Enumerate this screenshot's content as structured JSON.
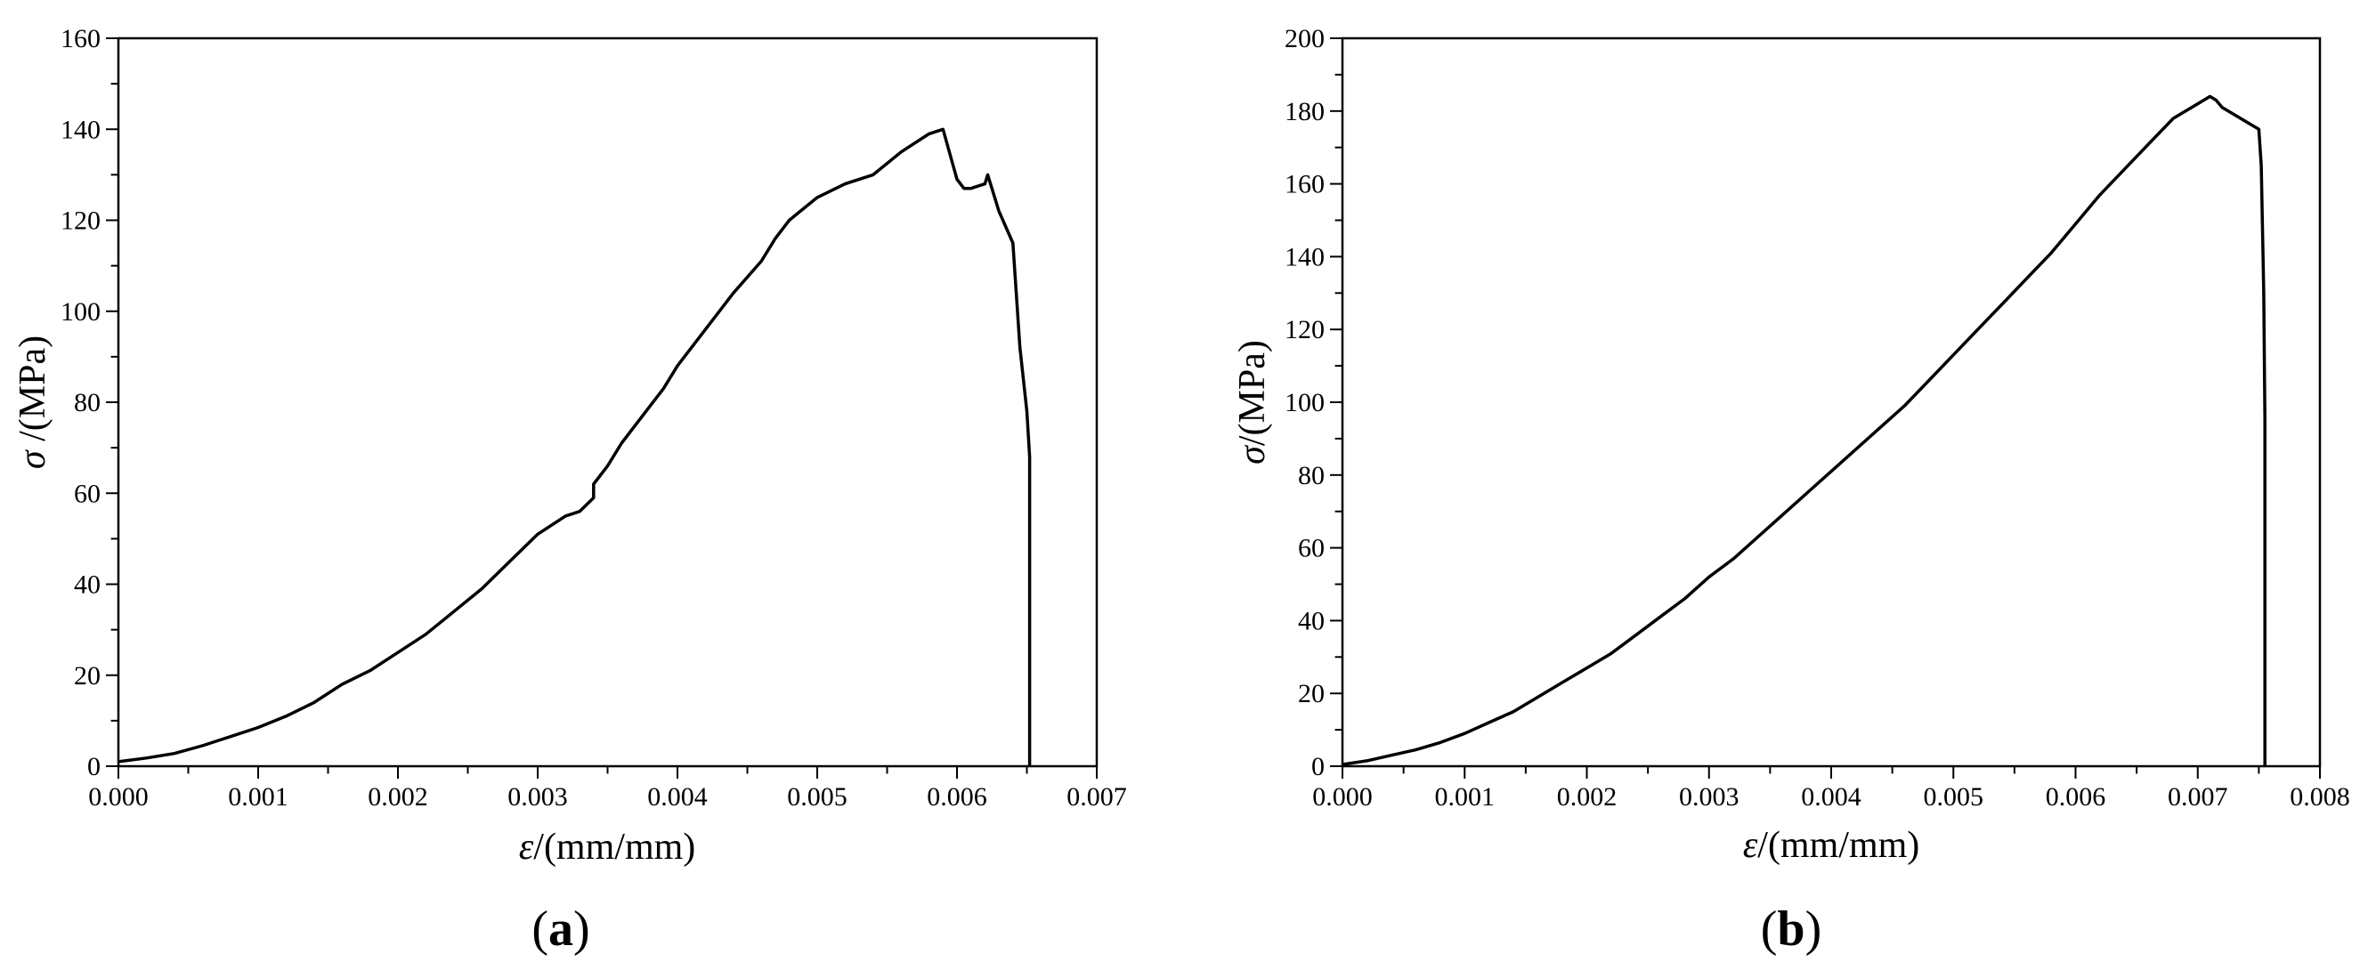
{
  "chart_data": [
    {
      "type": "line",
      "panel": "a",
      "panel_label": "a",
      "xlabel_symbol": "ε",
      "xlabel_unit": "/(mm/mm)",
      "ylabel_symbol": "σ",
      "ylabel_unit": " /(MPa)",
      "xlim": [
        0,
        0.007
      ],
      "ylim": [
        0,
        160
      ],
      "x_ticks": [
        "0.000",
        "0.001",
        "0.002",
        "0.003",
        "0.004",
        "0.005",
        "0.006",
        "0.007"
      ],
      "y_ticks": [
        "0",
        "20",
        "40",
        "60",
        "80",
        "100",
        "120",
        "140",
        "160"
      ],
      "grid": false,
      "series": [
        {
          "color": "#000000",
          "x": [
            0.0,
            0.0002,
            0.0004,
            0.0006,
            0.0008,
            0.001,
            0.0012,
            0.0014,
            0.0016,
            0.0018,
            0.002,
            0.0022,
            0.0024,
            0.0026,
            0.0028,
            0.003,
            0.0032,
            0.0033,
            0.0034,
            0.0034,
            0.0035,
            0.0036,
            0.0038,
            0.0039,
            0.004,
            0.0042,
            0.0044,
            0.0046,
            0.0047,
            0.0048,
            0.005,
            0.0052,
            0.0054,
            0.0056,
            0.0058,
            0.0059,
            0.006,
            0.00605,
            0.0061,
            0.0062,
            0.00622,
            0.0063,
            0.0064,
            0.00645,
            0.0065,
            0.00652,
            0.00652
          ],
          "y": [
            1,
            1.8,
            2.8,
            4.5,
            6.5,
            8.5,
            11,
            14,
            18,
            21,
            25,
            29,
            34,
            39,
            45,
            51,
            55,
            56,
            59,
            62,
            66,
            71,
            79,
            83,
            88,
            96,
            104,
            111,
            116,
            120,
            125,
            128,
            130,
            135,
            139,
            140,
            129,
            127,
            127,
            128,
            130,
            122,
            115,
            92,
            78,
            68,
            0
          ]
        }
      ]
    },
    {
      "type": "line",
      "panel": "b",
      "panel_label": "b",
      "xlabel_symbol": "ε",
      "xlabel_unit": "/(mm/mm)",
      "ylabel_symbol": "σ",
      "ylabel_unit": "/(MPa)",
      "xlim": [
        0,
        0.008
      ],
      "ylim": [
        0,
        200
      ],
      "x_ticks": [
        "0.000",
        "0.001",
        "0.002",
        "0.003",
        "0.004",
        "0.005",
        "0.006",
        "0.007",
        "0.008"
      ],
      "y_ticks": [
        "0",
        "20",
        "40",
        "60",
        "80",
        "100",
        "120",
        "140",
        "160",
        "180",
        "200"
      ],
      "grid": false,
      "series": [
        {
          "color": "#000000",
          "x": [
            0.0,
            0.0002,
            0.0004,
            0.0006,
            0.0008,
            0.001,
            0.0012,
            0.0014,
            0.0016,
            0.0018,
            0.002,
            0.0022,
            0.0024,
            0.0026,
            0.0028,
            0.003,
            0.0032,
            0.0034,
            0.0036,
            0.0038,
            0.004,
            0.0042,
            0.0044,
            0.0046,
            0.0048,
            0.005,
            0.0052,
            0.0054,
            0.0056,
            0.0058,
            0.006,
            0.0062,
            0.0064,
            0.0066,
            0.0068,
            0.007,
            0.0071,
            0.00715,
            0.0072,
            0.0073,
            0.0074,
            0.0075,
            0.00752,
            0.00754,
            0.00755,
            0.00755
          ],
          "y": [
            0.5,
            1.5,
            3,
            4.5,
            6.5,
            9,
            12,
            15,
            19,
            23,
            27,
            31,
            36,
            41,
            46,
            52,
            57,
            63,
            69,
            75,
            81,
            87,
            93,
            99,
            106,
            113,
            120,
            127,
            134,
            141,
            149,
            157,
            164,
            171,
            178,
            182,
            184,
            183,
            181,
            179,
            177,
            175,
            165,
            130,
            95,
            0
          ]
        }
      ]
    }
  ]
}
